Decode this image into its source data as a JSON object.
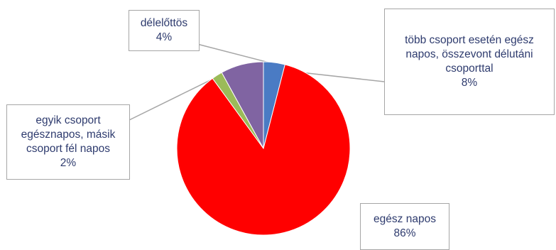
{
  "chart_data": {
    "type": "pie",
    "slices": [
      {
        "label": "délelőttös",
        "value": 4,
        "value_label": "4%",
        "color": "#4a7bc4"
      },
      {
        "label": "egész napos",
        "value": 86,
        "value_label": "86%",
        "color": "#ff0000"
      },
      {
        "label": "egyik csoport egésznapos, másik csoport fél napos",
        "value": 2,
        "value_label": "2%",
        "color": "#9bbb59"
      },
      {
        "label": "több csoport esetén egész napos, összevont délutáni csoporttal",
        "value": 8,
        "value_label": "8%",
        "color": "#8064a2"
      }
    ],
    "legend": "none",
    "data_labels": "callouts"
  },
  "callouts": {
    "delelottos": {
      "lines": [
        "délelőttös",
        "4%"
      ]
    },
    "tobb": {
      "lines": [
        "több csoport esetén egész",
        "napos, összevont délutáni",
        "csoporttal",
        "8%"
      ]
    },
    "egyik": {
      "lines": [
        "egyik csoport",
        "egésznapos, másik",
        "csoport fél napos",
        "2%"
      ]
    },
    "egesz": {
      "lines": [
        "egész napos",
        "86%"
      ]
    }
  }
}
